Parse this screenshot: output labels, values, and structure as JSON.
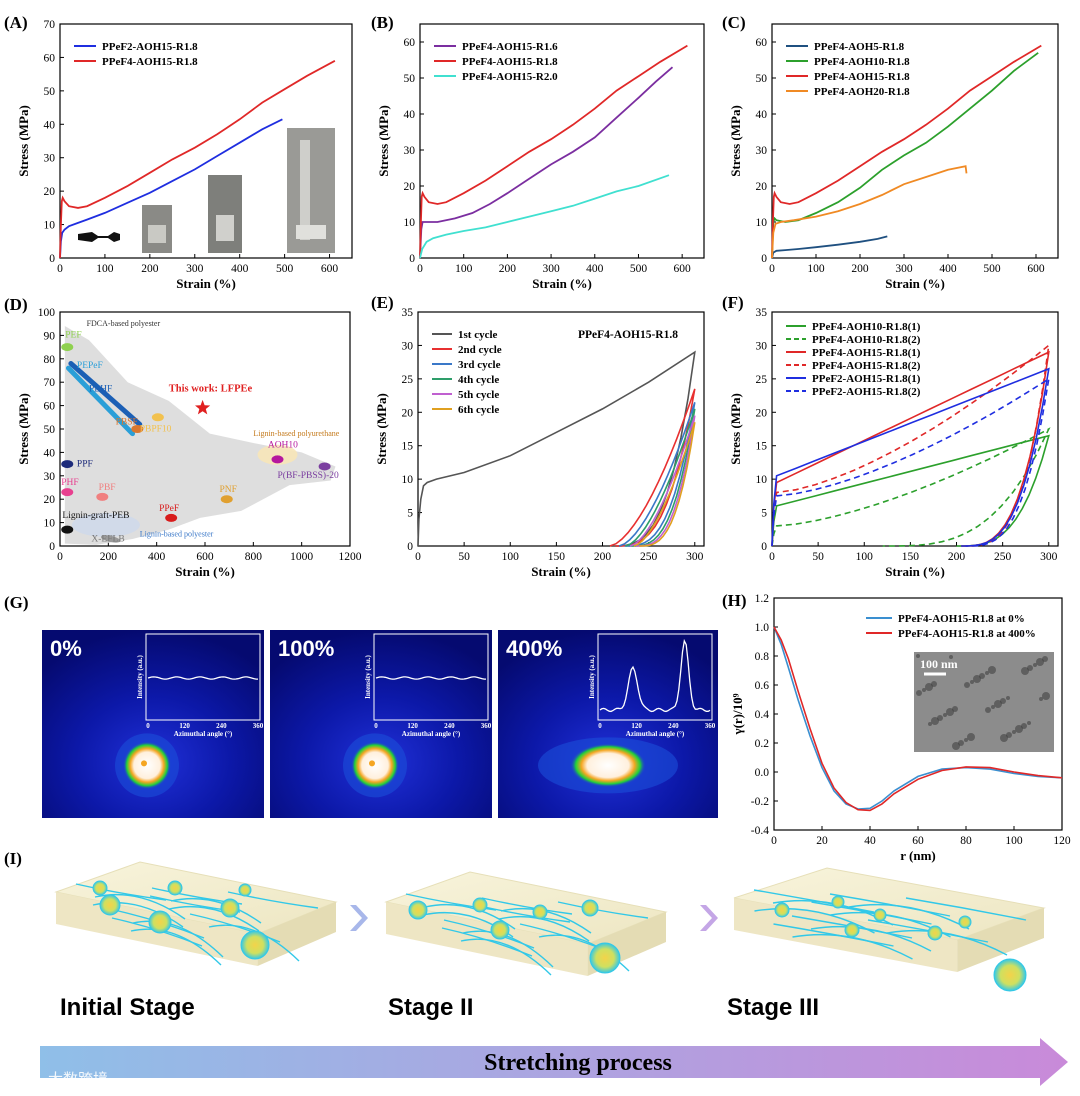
{
  "chart_data": [
    {
      "panel": "(A)",
      "type": "line",
      "xlabel": "Strain (%)",
      "ylabel": "Stress (MPa)",
      "xlim": [
        0,
        650
      ],
      "ylim": [
        0,
        70
      ],
      "xticks": [
        0,
        100,
        200,
        300,
        400,
        500,
        600
      ],
      "yticks": [
        0,
        10,
        20,
        30,
        40,
        50,
        60,
        70
      ],
      "legend": "top-left",
      "series": [
        {
          "name": "PPeF2-AOH15-R1.8",
          "color": "#1f2ee0",
          "x": [
            0,
            2,
            5,
            10,
            20,
            40,
            60,
            100,
            150,
            200,
            250,
            300,
            350,
            400,
            450,
            495
          ],
          "y": [
            0,
            5,
            7.5,
            8.5,
            9.5,
            10.5,
            11.5,
            13.5,
            16.5,
            19.5,
            23,
            26.5,
            30.5,
            34.5,
            38.5,
            41.5
          ]
        },
        {
          "name": "PPeF4-AOH15-R1.8",
          "color": "#e02828",
          "x": [
            0,
            2,
            4,
            6,
            10,
            20,
            40,
            60,
            100,
            150,
            200,
            250,
            300,
            350,
            400,
            450,
            500,
            550,
            612
          ],
          "y": [
            0,
            10,
            17,
            18,
            17,
            15.5,
            15,
            15.5,
            18,
            21.5,
            25.5,
            29.5,
            33,
            37,
            41.5,
            46.5,
            50.5,
            54.5,
            59
          ]
        }
      ]
    },
    {
      "panel": "(B)",
      "type": "line",
      "xlabel": "Strain (%)",
      "ylabel": "Stress (MPa)",
      "xlim": [
        0,
        650
      ],
      "ylim": [
        0,
        65
      ],
      "xticks": [
        0,
        100,
        200,
        300,
        400,
        500,
        600
      ],
      "yticks": [
        0,
        10,
        20,
        30,
        40,
        50,
        60
      ],
      "legend": "top-left",
      "series": [
        {
          "name": "PPeF4-AOH15-R1.6",
          "color": "#7b2ea0",
          "x": [
            0,
            3,
            6,
            10,
            40,
            80,
            120,
            160,
            200,
            250,
            300,
            350,
            400,
            450,
            500,
            540,
            578
          ],
          "y": [
            0,
            8,
            10,
            10,
            10,
            11,
            12.5,
            15,
            18,
            22,
            26,
            29.5,
            33.5,
            39,
            44.5,
            49,
            53
          ]
        },
        {
          "name": "PPeF4-AOH15-R1.8",
          "color": "#e02828",
          "x": [
            0,
            2,
            4,
            6,
            10,
            20,
            40,
            60,
            100,
            150,
            200,
            250,
            300,
            350,
            400,
            450,
            500,
            550,
            612
          ],
          "y": [
            0,
            10,
            17,
            18,
            17,
            15.5,
            15,
            15.5,
            18,
            21.5,
            25.5,
            29.5,
            33,
            37,
            41.5,
            46.5,
            50.5,
            54.5,
            59
          ]
        },
        {
          "name": "PPeF4-AOH15-R2.0",
          "color": "#40e0d0",
          "x": [
            0,
            5,
            15,
            30,
            60,
            100,
            150,
            200,
            250,
            300,
            350,
            400,
            450,
            500,
            570
          ],
          "y": [
            0,
            2.5,
            4.5,
            5.5,
            6.5,
            7.5,
            8.5,
            10,
            11.5,
            13,
            14.5,
            16.5,
            18.5,
            20,
            23
          ]
        }
      ]
    },
    {
      "panel": "(C)",
      "type": "line",
      "xlabel": "Strain (%)",
      "ylabel": "Stress (MPa)",
      "xlim": [
        0,
        650
      ],
      "ylim": [
        0,
        65
      ],
      "xticks": [
        0,
        100,
        200,
        300,
        400,
        500,
        600
      ],
      "yticks": [
        0,
        10,
        20,
        30,
        40,
        50,
        60
      ],
      "legend": "top-left",
      "series": [
        {
          "name": "PPeF4-AOH5-R1.8",
          "color": "#1f5080",
          "x": [
            0,
            3,
            10,
            30,
            60,
            100,
            150,
            200,
            240,
            262
          ],
          "y": [
            0,
            1.5,
            2,
            2.2,
            2.5,
            3,
            3.7,
            4.5,
            5.3,
            6
          ]
        },
        {
          "name": "PPeF4-AOH10-R1.8",
          "color": "#2ca02c",
          "x": [
            0,
            3,
            6,
            10,
            30,
            60,
            100,
            150,
            200,
            250,
            300,
            350,
            400,
            450,
            500,
            550,
            605
          ],
          "y": [
            0,
            10,
            11,
            10.5,
            10,
            10.5,
            12.5,
            15.5,
            19.5,
            24.5,
            28.5,
            32,
            36.5,
            41.5,
            46.5,
            52,
            57
          ]
        },
        {
          "name": "PPeF4-AOH15-R1.8",
          "color": "#e02828",
          "x": [
            0,
            2,
            4,
            6,
            10,
            20,
            40,
            60,
            100,
            150,
            200,
            250,
            300,
            350,
            400,
            450,
            500,
            550,
            612
          ],
          "y": [
            0,
            10,
            17,
            18,
            17,
            15.5,
            15,
            15.5,
            18,
            21.5,
            25.5,
            29.5,
            33,
            37,
            41.5,
            46.5,
            50.5,
            54.5,
            59
          ]
        },
        {
          "name": "PPeF4-AOH20-R1.8",
          "color": "#f08a24",
          "x": [
            0,
            3,
            8,
            20,
            50,
            100,
            150,
            200,
            250,
            300,
            350,
            400,
            440,
            442
          ],
          "y": [
            0,
            7,
            9.5,
            10,
            10.5,
            11.5,
            13,
            15,
            17.5,
            20.5,
            22.5,
            24.5,
            25.5,
            23.5
          ]
        }
      ]
    },
    {
      "panel": "(D)",
      "type": "scatter",
      "xlabel": "Strain (%)",
      "ylabel": "Stress (MPa)",
      "xlim": [
        0,
        1200
      ],
      "ylim": [
        0,
        100
      ],
      "xticks": [
        0,
        200,
        400,
        600,
        800,
        1000,
        1200
      ],
      "yticks": [
        0,
        10,
        20,
        30,
        40,
        50,
        60,
        70,
        80,
        90,
        100
      ],
      "points": [
        {
          "label": "PEF",
          "x": 30,
          "y": 85,
          "color": "#8fd14f"
        },
        {
          "label": "PBSF",
          "x": 320,
          "y": 50,
          "color": "#d9772e"
        },
        {
          "label": "PBPF10",
          "x": 405,
          "y": 55,
          "color": "#f2c14e"
        },
        {
          "label": "AOH10",
          "x": 900,
          "y": 37,
          "color": "#b5179e"
        },
        {
          "label": "PPF",
          "x": 30,
          "y": 35,
          "color": "#1d2b7a"
        },
        {
          "label": "PHF",
          "x": 30,
          "y": 23,
          "color": "#e83f8f"
        },
        {
          "label": "PBF",
          "x": 175,
          "y": 21,
          "color": "#f08080"
        },
        {
          "label": "PPeF",
          "x": 460,
          "y": 12,
          "color": "#d81b1b"
        },
        {
          "label": "PNF",
          "x": 690,
          "y": 20,
          "color": "#e0a030"
        },
        {
          "label": "P(BF-PBSS)-20",
          "x": 1095,
          "y": 34,
          "color": "#7b3fa0"
        },
        {
          "label": "Lignin-graft-PEB",
          "x": 30,
          "y": 7,
          "color": "#111111"
        },
        {
          "label": "X-EFLB",
          "x": 210,
          "y": 3,
          "color": "#999999"
        },
        {
          "label": "This work: LFPEe",
          "x": 590,
          "y": 59,
          "color": "#e02020"
        }
      ],
      "segments": [
        {
          "label": "PEPeF",
          "x": [
            35,
            300
          ],
          "y": [
            76,
            48
          ],
          "color": "#2a9fd8"
        },
        {
          "label": "PEHF",
          "x": [
            45,
            330
          ],
          "y": [
            78,
            52
          ],
          "color": "#1b5fb5"
        }
      ],
      "annotations": [
        "FDCA-based polyester",
        "Lignin-based polyurethane",
        "Lignin-based polyester"
      ]
    },
    {
      "panel": "(E)",
      "type": "line",
      "title": "PPeF4-AOH15-R1.8",
      "xlabel": "Strain (%)",
      "ylabel": "Stress (MPa)",
      "xlim": [
        0,
        310
      ],
      "ylim": [
        0,
        35
      ],
      "xticks": [
        0,
        50,
        100,
        150,
        200,
        250,
        300
      ],
      "yticks": [
        0,
        5,
        10,
        15,
        20,
        25,
        30,
        35
      ],
      "legend": "top-left",
      "series": [
        {
          "name": "1st cycle",
          "color": "#555555",
          "loop": true,
          "x": [
            0,
            1,
            3,
            6,
            10,
            20,
            50,
            100,
            150,
            200,
            250,
            300
          ],
          "y": [
            0,
            4,
            7,
            9,
            9.5,
            10,
            11,
            13.5,
            17,
            20.5,
            24.5,
            29
          ]
        },
        {
          "name": "2nd cycle",
          "color": "#e83030",
          "loop": true,
          "start": 208,
          "peak": 23.5
        },
        {
          "name": "3rd cycle",
          "color": "#3a78c8",
          "loop": true,
          "start": 218,
          "peak": 21.5
        },
        {
          "name": "4th cycle",
          "color": "#2e9e6a",
          "loop": true,
          "start": 225,
          "peak": 20.5
        },
        {
          "name": "5th cycle",
          "color": "#c060d0",
          "loop": true,
          "start": 230,
          "peak": 19.5
        },
        {
          "name": "6th cycle",
          "color": "#e0a020",
          "loop": true,
          "start": 234,
          "peak": 18.5
        }
      ]
    },
    {
      "panel": "(F)",
      "type": "line",
      "xlabel": "Strain (%)",
      "ylabel": "Stress (MPa)",
      "xlim": [
        0,
        310
      ],
      "ylim": [
        0,
        35
      ],
      "xticks": [
        0,
        50,
        100,
        150,
        200,
        250,
        300
      ],
      "yticks": [
        0,
        5,
        10,
        15,
        20,
        25,
        30,
        35
      ],
      "legend": "top-left",
      "series": [
        {
          "name": "PPeF4-AOH10-R1.8(1)",
          "color": "#2ca02c",
          "dash": false,
          "peak": 16.5,
          "initial": 6,
          "return": 200
        },
        {
          "name": "PPeF4-AOH10-R1.8(2)",
          "color": "#2ca02c",
          "dash": true,
          "peak": 17.5,
          "initial": 3,
          "return": 120
        },
        {
          "name": "PPeF4-AOH15-R1.8(1)",
          "color": "#e02828",
          "dash": false,
          "peak": 29,
          "initial": 9.5,
          "return": 205
        },
        {
          "name": "PPeF4-AOH15-R1.8(2)",
          "color": "#e02828",
          "dash": true,
          "peak": 30,
          "initial": 8,
          "return": 210
        },
        {
          "name": "PPeF2-AOH15-R1.8(1)",
          "color": "#1f2ee0",
          "dash": false,
          "peak": 26.5,
          "initial": 10.5,
          "return": 205
        },
        {
          "name": "PPeF2-AOH15-R1.8(2)",
          "color": "#1f2ee0",
          "dash": true,
          "peak": 25,
          "initial": 7.5,
          "return": 210
        }
      ]
    },
    {
      "panel": "(H)",
      "type": "line",
      "xlabel": "r (nm)",
      "ylabel": "γ(r)/10⁹",
      "xlim": [
        0,
        120
      ],
      "ylim": [
        -0.4,
        1.2
      ],
      "xticks": [
        0,
        20,
        40,
        60,
        80,
        100,
        120
      ],
      "yticks": [
        -0.4,
        -0.2,
        0.0,
        0.2,
        0.4,
        0.6,
        0.8,
        1.0,
        1.2
      ],
      "legend": "top-right",
      "series": [
        {
          "name": "PPeF4-AOH15-R1.8 at 0%",
          "color": "#3a8fd0",
          "x": [
            0,
            3,
            6,
            10,
            15,
            20,
            25,
            30,
            35,
            40,
            45,
            50,
            60,
            70,
            80,
            90,
            100,
            110,
            120
          ],
          "y": [
            1.0,
            0.88,
            0.72,
            0.5,
            0.25,
            0.03,
            -0.13,
            -0.22,
            -0.255,
            -0.25,
            -0.2,
            -0.13,
            -0.03,
            0.02,
            0.03,
            0.02,
            -0.01,
            -0.03,
            -0.04
          ]
        },
        {
          "name": "PPeF4-AOH15-R1.8 at 400%",
          "color": "#e02828",
          "x": [
            0,
            3,
            6,
            10,
            15,
            20,
            25,
            30,
            35,
            40,
            45,
            50,
            60,
            70,
            80,
            90,
            100,
            110,
            120
          ],
          "y": [
            1.0,
            0.91,
            0.78,
            0.56,
            0.3,
            0.06,
            -0.11,
            -0.21,
            -0.26,
            -0.265,
            -0.22,
            -0.15,
            -0.05,
            0.01,
            0.035,
            0.03,
            0.0,
            -0.025,
            -0.04
          ]
        }
      ]
    }
  ],
  "panels": {
    "A": "(A)",
    "B": "(B)",
    "C": "(C)",
    "D": "(D)",
    "E": "(E)",
    "F": "(F)",
    "G": "(G)",
    "H": "(H)",
    "I": "(I)"
  },
  "panelD_text": {
    "this_work": "This work: LFPEe",
    "fdca": "FDCA-based polyester",
    "lignin_pu": "Lignin-based polyurethane",
    "lignin_pe": "Lignin-based polyester"
  },
  "panelG": {
    "images": [
      {
        "label": "0%",
        "inset_xlabel": "Azimuthal angle (°)",
        "inset_ylabel": "Intensity (a.u.)",
        "inset_ticks": [
          "0",
          "120",
          "240",
          "360"
        ]
      },
      {
        "label": "100%",
        "inset_xlabel": "Azimuthal angle (°)",
        "inset_ylabel": "Intensity (a.u.)",
        "inset_ticks": [
          "0",
          "120",
          "240",
          "360"
        ]
      },
      {
        "label": "400%",
        "inset_xlabel": "Azimuthal angle (°)",
        "inset_ylabel": "Intensity (a.u.)",
        "inset_ticks": [
          "0",
          "120",
          "240",
          "360"
        ]
      }
    ],
    "colors": {
      "background": "#0a0f8a",
      "ring_outer": "#1fd13a",
      "ring_mid": "#f5a623",
      "ring_inner": "#fff4e0"
    }
  },
  "panelH_inset": {
    "scale_bar": "100 nm"
  },
  "panelI": {
    "stages": [
      "Initial Stage",
      "Stage II",
      "Stage III"
    ],
    "process": "Stretching process",
    "watermark": "大数跨境",
    "colors": {
      "block": "#f6f1d3",
      "fiber": "#32c8e8",
      "arrow_start": "#8fbfe8",
      "arrow_end": "#c98ad9"
    }
  }
}
